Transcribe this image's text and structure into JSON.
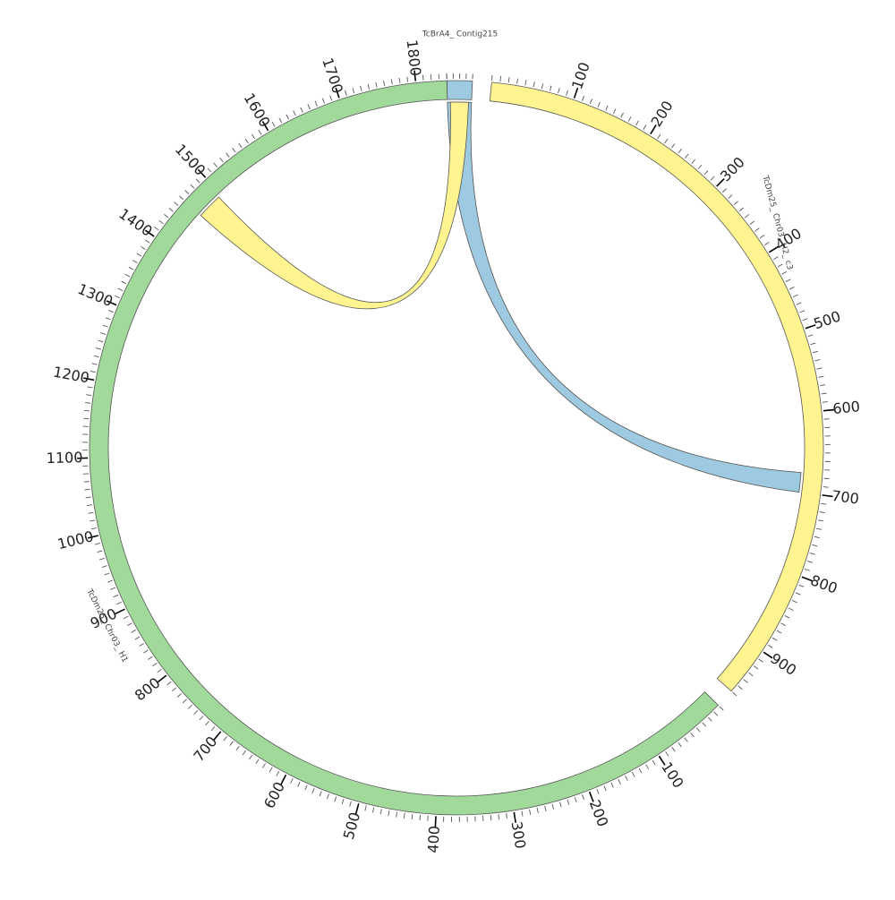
{
  "segments": [
    {
      "id": "contig215",
      "label": "TcBrA4_ Contig215",
      "length": 40,
      "start_angle_deg": -1.5,
      "end_angle_deg": 2.5,
      "color": "#9ecae1",
      "tick_labels": []
    },
    {
      "id": "chr03_h2_c3",
      "label": "TcDm25_ Chr03_ H2_ c3",
      "length": 960,
      "start_angle_deg": 5.5,
      "end_angle_deg": 131.5,
      "color": "#fff48f",
      "tick_labels": [
        "100",
        "200",
        "300",
        "400",
        "500",
        "600",
        "700",
        "800",
        "900"
      ]
    },
    {
      "id": "chr03_h1",
      "label": "TcDm25_ Chr03_ H1",
      "length": 1840,
      "start_angle_deg": 134.5,
      "end_angle_deg": 358.5,
      "color": "#a1d99b",
      "tick_labels": [
        "100",
        "200",
        "300",
        "400",
        "500",
        "600",
        "700",
        "800",
        "900",
        "1000",
        "1100",
        "1200",
        "1300",
        "1400",
        "1500",
        "1600",
        "1700",
        "1800"
      ]
    }
  ],
  "links": [
    {
      "from": {
        "segment": "contig215",
        "start": 0,
        "end": 40
      },
      "to": {
        "segment": "chr03_h2_c3",
        "start": 675,
        "end": 700
      },
      "color": "#9ecae1"
    },
    {
      "from": {
        "segment": "contig215",
        "start": 5,
        "end": 35
      },
      "to": {
        "segment": "chr03_h1",
        "start": 1460,
        "end": 1495
      },
      "color": "#fff48f"
    }
  ]
}
